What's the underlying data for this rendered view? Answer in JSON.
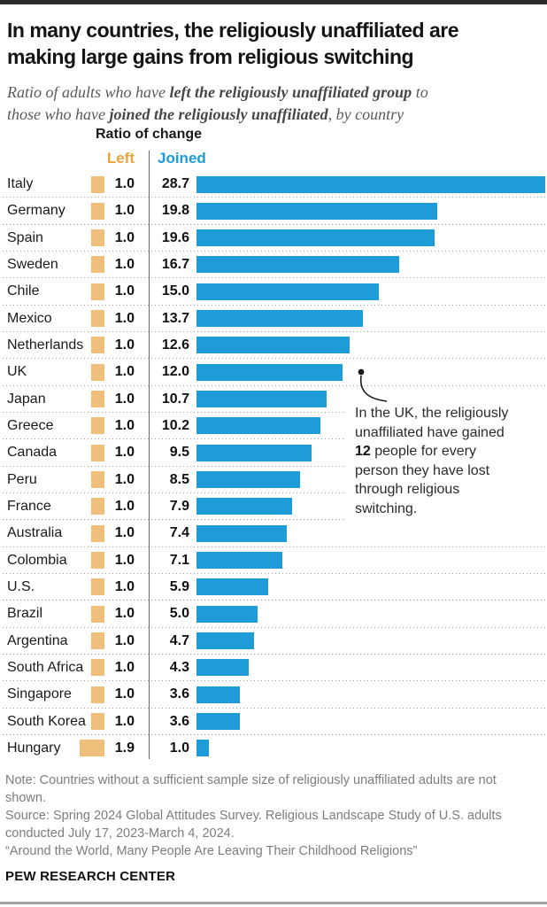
{
  "header": {
    "title_l1": "In many countries, the religiously unaffiliated are",
    "title_l2": "making large gains from religious switching",
    "sub_l1a": "Ratio of adults who have ",
    "sub_l1b": "left the religiously unaffiliated group",
    "sub_l1c": " to",
    "sub_l2a": "those who have ",
    "sub_l2b": "joined the religiously unaffiliated",
    "sub_l2c": ", by country"
  },
  "legend": {
    "title": "Ratio of change",
    "left_label": "Left",
    "joined_label": "Joined"
  },
  "colors": {
    "joined_blue": "#1e9cd7",
    "left_tan": "#efc07c",
    "left_text_orange": "#e9a53c",
    "joined_text_blue": "#1e9cd7"
  },
  "chart_data": {
    "type": "bar",
    "orientation": "horizontal",
    "title": "Ratio of change",
    "xlabel": "",
    "ylabel": "",
    "xlim": [
      0,
      28.7
    ],
    "grid": "dotted-row-separators",
    "legend_position": "top",
    "categories": [
      "Italy",
      "Germany",
      "Spain",
      "Sweden",
      "Chile",
      "Mexico",
      "Netherlands",
      "UK",
      "Japan",
      "Greece",
      "Canada",
      "Peru",
      "France",
      "Australia",
      "Colombia",
      "U.S.",
      "Brazil",
      "Argentina",
      "South Africa",
      "Singapore",
      "South Korea",
      "Hungary"
    ],
    "series": [
      {
        "name": "Left",
        "values": [
          1.0,
          1.0,
          1.0,
          1.0,
          1.0,
          1.0,
          1.0,
          1.0,
          1.0,
          1.0,
          1.0,
          1.0,
          1.0,
          1.0,
          1.0,
          1.0,
          1.0,
          1.0,
          1.0,
          1.0,
          1.0,
          1.9
        ]
      },
      {
        "name": "Joined",
        "values": [
          28.7,
          19.8,
          19.6,
          16.7,
          15.0,
          13.7,
          12.6,
          12.0,
          10.7,
          10.2,
          9.5,
          8.5,
          7.9,
          7.4,
          7.1,
          5.9,
          5.0,
          4.7,
          4.3,
          3.6,
          3.6,
          1.0
        ]
      }
    ],
    "row_separators": [
      "full",
      "full",
      "full",
      "full",
      "full",
      "full",
      "full",
      "full",
      "short",
      "short",
      "short",
      "short",
      "short",
      "full",
      "full",
      "full",
      "full",
      "full",
      "full",
      "full",
      "full",
      "none"
    ]
  },
  "annotation": {
    "l1": "In the UK, the religiously",
    "l2": "unaffiliated have gained",
    "l3_bold": "12",
    "l3_rest": " people for every",
    "l4": "person they have lost",
    "l5": "through religious",
    "l6": "switching."
  },
  "footer": {
    "note_l1": "Note: Countries without a sufficient sample size of religiously unaffiliated adults are not",
    "note_l2": "shown.",
    "source_l1": "Source: Spring 2024 Global Attitudes Survey. Religious Landscape Study of U.S. adults",
    "source_l2": "conducted July 17, 2023-March 4, 2024.",
    "quote": "“Around the World, Many People Are Leaving Their Childhood Religions”",
    "brand": "PEW RESEARCH CENTER"
  }
}
